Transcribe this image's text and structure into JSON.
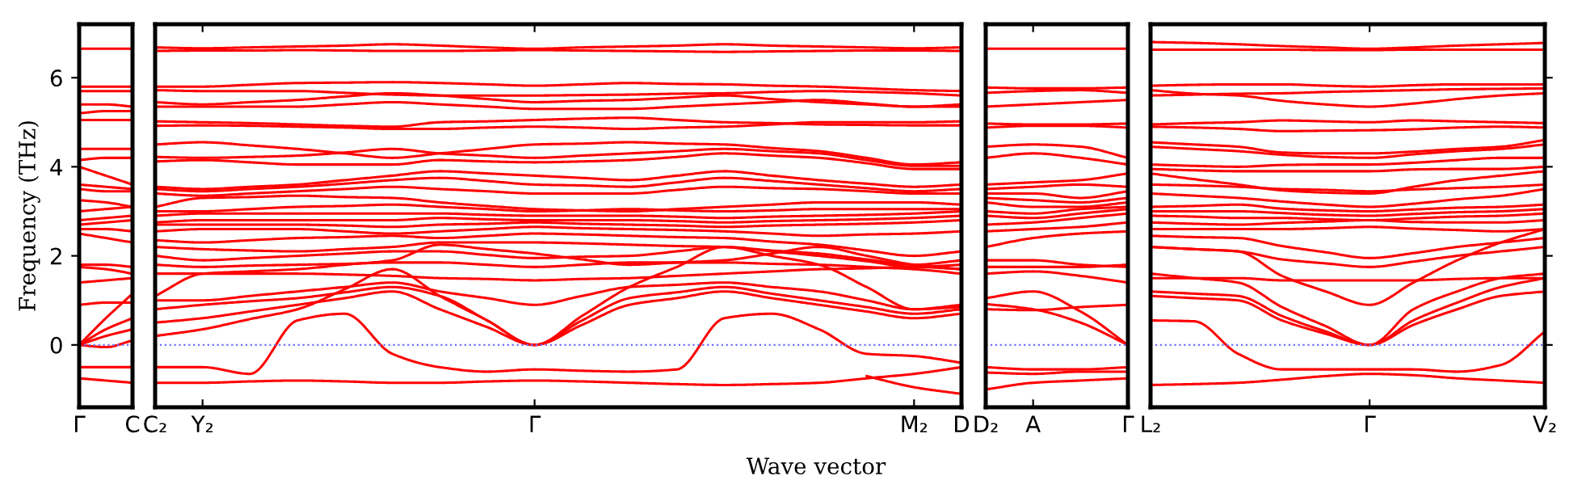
{
  "chart_data": [
    {
      "type": "line",
      "ylabel": "Frequency (THz)",
      "categories": [
        "Γ",
        null,
        "C"
      ],
      "ylim": [
        -1.4,
        7.2
      ],
      "yticks": [
        0,
        2,
        4,
        6
      ],
      "ref_lines": [
        {
          "axis": "y",
          "value": 0,
          "color": "#6f6fff",
          "line_style": "dotted"
        }
      ],
      "series": [
        {
          "color": "#ff0000",
          "values": [
            6.65,
            6.65,
            6.65
          ]
        },
        {
          "color": "#ff0000",
          "values": [
            5.8,
            5.8,
            5.8
          ]
        },
        {
          "color": "#ff0000",
          "values": [
            5.7,
            5.7,
            5.7
          ]
        },
        {
          "color": "#ff0000",
          "values": [
            5.4,
            5.4,
            5.35
          ]
        },
        {
          "color": "#ff0000",
          "values": [
            5.2,
            5.25,
            5.25
          ]
        },
        {
          "color": "#ff0000",
          "values": [
            5.05,
            5.05,
            5.05
          ]
        },
        {
          "color": "#ff0000",
          "values": [
            4.4,
            4.4,
            4.4
          ]
        },
        {
          "color": "#ff0000",
          "values": [
            4.15,
            4.2,
            4.2
          ]
        },
        {
          "color": "#ff0000",
          "values": [
            4.0,
            3.8,
            3.6
          ]
        },
        {
          "color": "#ff0000",
          "values": [
            3.6,
            3.55,
            3.5
          ]
        },
        {
          "color": "#ff0000",
          "values": [
            3.5,
            3.45,
            3.45
          ]
        },
        {
          "color": "#ff0000",
          "values": [
            3.25,
            3.2,
            3.1
          ]
        },
        {
          "color": "#ff0000",
          "values": [
            3.0,
            3.05,
            3.1
          ]
        },
        {
          "color": "#ff0000",
          "values": [
            2.8,
            2.85,
            2.9
          ]
        },
        {
          "color": "#ff0000",
          "values": [
            2.7,
            2.75,
            2.8
          ]
        },
        {
          "color": "#ff0000",
          "values": [
            2.6,
            2.6,
            2.55
          ]
        },
        {
          "color": "#ff0000",
          "values": [
            2.5,
            2.4,
            2.3
          ]
        },
        {
          "color": "#ff0000",
          "values": [
            1.8,
            1.8,
            1.75
          ]
        },
        {
          "color": "#ff0000",
          "values": [
            1.75,
            1.7,
            1.6
          ]
        },
        {
          "color": "#ff0000",
          "values": [
            1.4,
            1.45,
            1.5
          ]
        },
        {
          "color": "#ff0000",
          "values": [
            0.9,
            0.95,
            0.95
          ]
        },
        {
          "color": "#ff0000",
          "values": [
            0,
            0.6,
            1.15
          ]
        },
        {
          "color": "#ff0000",
          "values": [
            0,
            0.35,
            0.6
          ]
        },
        {
          "color": "#ff0000",
          "values": [
            0,
            0.2,
            0.35
          ]
        },
        {
          "color": "#ff0000",
          "values": [
            0,
            -0.05,
            0.1
          ]
        },
        {
          "color": "#ff0000",
          "values": [
            -0.5,
            -0.5,
            -0.5
          ]
        },
        {
          "color": "#ff0000",
          "values": [
            -0.75,
            -0.8,
            -0.85
          ]
        }
      ]
    },
    {
      "type": "line",
      "xlabel": "Wave vector",
      "tick_labels": "x",
      "categories": [
        "C₂",
        "Y₂",
        null,
        null,
        null,
        null,
        null,
        null,
        "Γ",
        null,
        null,
        null,
        null,
        null,
        null,
        null,
        "M₂",
        "D"
      ],
      "ylim": [
        -1.4,
        7.2
      ],
      "yticks": [
        0,
        2,
        4,
        6
      ],
      "ref_lines": [
        {
          "axis": "y",
          "value": 0,
          "color": "#6f6fff",
          "line_style": "dotted"
        }
      ],
      "series": [
        {
          "color": "#ff0000",
          "values": [
            6.68,
            6.66,
            6.68,
            6.7,
            6.72,
            6.75,
            6.72,
            6.68,
            6.65,
            6.68,
            6.7,
            6.72,
            6.75,
            6.72,
            6.7,
            6.68,
            6.66,
            6.68
          ]
        },
        {
          "color": "#ff0000",
          "values": [
            6.6,
            6.61,
            6.61,
            6.62,
            6.61,
            6.6,
            6.6,
            6.61,
            6.62,
            6.61,
            6.6,
            6.59,
            6.58,
            6.59,
            6.6,
            6.61,
            6.61,
            6.6
          ]
        },
        {
          "color": "#ff0000",
          "values": [
            5.8,
            5.8,
            5.84,
            5.88,
            5.89,
            5.9,
            5.88,
            5.85,
            5.82,
            5.85,
            5.88,
            5.86,
            5.85,
            5.82,
            5.8,
            5.76,
            5.72,
            5.7
          ]
        },
        {
          "color": "#ff0000",
          "values": [
            5.72,
            5.7,
            5.7,
            5.7,
            5.66,
            5.62,
            5.6,
            5.6,
            5.6,
            5.61,
            5.62,
            5.64,
            5.65,
            5.68,
            5.7,
            5.68,
            5.65,
            5.6
          ]
        },
        {
          "color": "#ff0000",
          "values": [
            5.45,
            5.4,
            5.45,
            5.5,
            5.58,
            5.65,
            5.6,
            5.52,
            5.45,
            5.48,
            5.5,
            5.55,
            5.6,
            5.52,
            5.45,
            5.4,
            5.35,
            5.35
          ]
        },
        {
          "color": "#ff0000",
          "values": [
            5.35,
            5.35,
            5.35,
            5.35,
            5.4,
            5.45,
            5.4,
            5.35,
            5.3,
            5.3,
            5.3,
            5.35,
            5.4,
            5.45,
            5.5,
            5.42,
            5.35,
            5.4
          ]
        },
        {
          "color": "#ff0000",
          "values": [
            5.02,
            5.0,
            4.98,
            4.95,
            4.92,
            4.9,
            5.0,
            5.02,
            5.05,
            5.08,
            5.1,
            5.05,
            5.0,
            4.98,
            4.95,
            4.94,
            4.93,
            4.93
          ]
        },
        {
          "color": "#ff0000",
          "values": [
            4.92,
            4.93,
            4.92,
            4.9,
            4.88,
            4.85,
            4.85,
            4.88,
            4.9,
            4.88,
            4.85,
            4.88,
            4.9,
            4.95,
            5.0,
            5.0,
            5.0,
            5.02
          ]
        },
        {
          "color": "#ff0000",
          "values": [
            4.5,
            4.55,
            4.48,
            4.4,
            4.3,
            4.2,
            4.3,
            4.4,
            4.5,
            4.52,
            4.55,
            4.52,
            4.5,
            4.42,
            4.35,
            4.2,
            4.05,
            4.1
          ]
        },
        {
          "color": "#ff0000",
          "values": [
            4.22,
            4.2,
            4.22,
            4.25,
            4.32,
            4.4,
            4.3,
            4.25,
            4.2,
            4.25,
            4.3,
            4.35,
            4.4,
            4.35,
            4.3,
            4.15,
            4.02,
            4.02
          ]
        },
        {
          "color": "#ff0000",
          "values": [
            4.12,
            4.15,
            4.1,
            4.05,
            4.05,
            4.05,
            4.15,
            4.12,
            4.1,
            4.12,
            4.15,
            4.22,
            4.3,
            4.25,
            4.2,
            4.08,
            3.95,
            3.95
          ]
        },
        {
          "color": "#ff0000",
          "values": [
            3.55,
            3.5,
            3.55,
            3.6,
            3.7,
            3.8,
            3.9,
            3.85,
            3.8,
            3.75,
            3.7,
            3.8,
            3.9,
            3.8,
            3.7,
            3.62,
            3.55,
            3.6
          ]
        },
        {
          "color": "#ff0000",
          "values": [
            3.5,
            3.45,
            3.5,
            3.55,
            3.62,
            3.7,
            3.75,
            3.68,
            3.6,
            3.58,
            3.55,
            3.65,
            3.75,
            3.68,
            3.6,
            3.52,
            3.45,
            3.5
          ]
        },
        {
          "color": "#ff0000",
          "values": [
            3.4,
            3.35,
            3.4,
            3.45,
            3.5,
            3.55,
            3.5,
            3.45,
            3.4,
            3.4,
            3.4,
            3.48,
            3.55,
            3.52,
            3.5,
            3.45,
            3.4,
            3.4
          ]
        },
        {
          "color": "#ff0000",
          "values": [
            3.1,
            3.3,
            3.32,
            3.35,
            3.32,
            3.3,
            3.2,
            3.12,
            3.05,
            3.02,
            3.0,
            3.05,
            3.1,
            3.15,
            3.2,
            3.2,
            3.2,
            3.15
          ]
        },
        {
          "color": "#ff0000",
          "values": [
            3.0,
            3.0,
            3.05,
            3.1,
            3.12,
            3.15,
            3.1,
            3.05,
            3.0,
            3.02,
            3.05,
            3.02,
            3.0,
            3.02,
            3.05,
            3.05,
            3.05,
            3.05
          ]
        },
        {
          "color": "#ff0000",
          "values": [
            2.9,
            2.95,
            2.95,
            2.95,
            2.95,
            2.95,
            2.95,
            2.92,
            2.9,
            2.9,
            2.9,
            2.88,
            2.85,
            2.88,
            2.9,
            2.92,
            2.95,
            3.0
          ]
        },
        {
          "color": "#ff0000",
          "values": [
            2.75,
            2.8,
            2.8,
            2.8,
            2.8,
            2.8,
            2.85,
            2.82,
            2.8,
            2.8,
            2.8,
            2.78,
            2.75,
            2.78,
            2.8,
            2.82,
            2.85,
            2.9
          ]
        },
        {
          "color": "#ff0000",
          "values": [
            2.7,
            2.7,
            2.7,
            2.7,
            2.68,
            2.65,
            2.7,
            2.72,
            2.75,
            2.72,
            2.7,
            2.68,
            2.65,
            2.68,
            2.7,
            2.72,
            2.75,
            2.8
          ]
        },
        {
          "color": "#ff0000",
          "values": [
            2.55,
            2.6,
            2.6,
            2.6,
            2.55,
            2.5,
            2.55,
            2.6,
            2.65,
            2.62,
            2.6,
            2.58,
            2.55,
            2.5,
            2.45,
            2.48,
            2.5,
            2.55
          ]
        },
        {
          "color": "#ff0000",
          "values": [
            2.35,
            2.3,
            2.35,
            2.4,
            2.42,
            2.45,
            2.4,
            2.45,
            2.5,
            2.48,
            2.45,
            2.42,
            2.4,
            2.32,
            2.25,
            2.12,
            2.0,
            2.1
          ]
        },
        {
          "color": "#ff0000",
          "values": [
            2.2,
            2.15,
            2.12,
            2.1,
            2.15,
            2.2,
            2.3,
            2.3,
            2.3,
            2.28,
            2.25,
            2.22,
            2.2,
            2.12,
            2.05,
            1.92,
            1.8,
            1.9
          ]
        },
        {
          "color": "#ff0000",
          "values": [
            2.0,
            1.9,
            1.95,
            2.0,
            2.05,
            2.1,
            2.1,
            2.02,
            1.95,
            1.98,
            2.0,
            2.1,
            2.2,
            2.1,
            2.0,
            1.88,
            1.75,
            1.8
          ]
        },
        {
          "color": "#ff0000",
          "values": [
            1.8,
            1.75,
            1.78,
            1.8,
            1.82,
            1.85,
            1.85,
            1.8,
            1.75,
            1.8,
            1.85,
            1.85,
            1.85,
            1.82,
            1.8,
            1.75,
            1.7,
            1.6
          ]
        },
        {
          "color": "#ff0000",
          "values": [
            1.1,
            1.6,
            1.65,
            1.7,
            1.8,
            1.9,
            2.25,
            2.15,
            2.05,
            1.92,
            1.8,
            1.85,
            1.9,
            2.05,
            2.2,
            2.0,
            1.8,
            1.7
          ]
        },
        {
          "color": "#ff0000",
          "values": [
            1.6,
            1.6,
            1.6,
            1.6,
            1.58,
            1.55,
            1.5,
            1.48,
            1.45,
            1.48,
            1.5,
            1.55,
            1.6,
            1.65,
            1.7,
            1.72,
            1.75,
            1.7
          ]
        },
        {
          "color": "#ff0000",
          "values": [
            1.0,
            1.0,
            1.1,
            1.2,
            1.3,
            1.4,
            1.2,
            1.05,
            0.9,
            1.1,
            1.3,
            1.35,
            1.4,
            1.3,
            1.2,
            1.0,
            0.8,
            0.85
          ]
        },
        {
          "color": "#ff0000",
          "values": [
            0.8,
            0.9,
            0.98,
            1.05,
            1.18,
            1.3,
            1.1,
            0.55,
            0,
            0.55,
            1.05,
            1.18,
            1.3,
            1.15,
            1.0,
            0.85,
            0.7,
            0.8
          ]
        },
        {
          "color": "#ff0000",
          "values": [
            0.5,
            0.6,
            0.75,
            0.9,
            1.05,
            1.2,
            0.8,
            0.4,
            0,
            0.45,
            0.9,
            1.05,
            1.2,
            1.05,
            0.9,
            0.75,
            0.6,
            0.7
          ]
        },
        {
          "color": "#ff0000",
          "values": [
            0.2,
            0.35,
            0.58,
            0.8,
            1.25,
            1.7,
            1.1,
            0.55,
            0,
            0.65,
            1.3,
            1.75,
            2.2,
            2.0,
            1.8,
            1.3,
            0.8,
            0.9
          ]
        },
        {
          "color": "#ff0000",
          "values": [
            -0.5,
            -0.5,
            -0.65,
            0.55,
            0.7,
            -0.2,
            -0.5,
            -0.6,
            -0.55,
            -0.58,
            -0.6,
            -0.55,
            0.6,
            0.7,
            0.35,
            -0.2,
            -0.25,
            -0.4
          ]
        },
        {
          "color": "#ff0000",
          "values": [
            -0.85,
            -0.85,
            -0.82,
            -0.8,
            -0.82,
            -0.85,
            -0.85,
            -0.82,
            -0.8,
            -0.82,
            -0.85,
            -0.88,
            -0.9,
            -0.88,
            -0.85,
            -0.75,
            -0.65,
            -0.5
          ]
        },
        {
          "color": "#ff0000",
          "values": [
            null,
            null,
            null,
            null,
            null,
            null,
            null,
            null,
            null,
            null,
            null,
            null,
            null,
            null,
            null,
            -0.7,
            -0.95,
            -1.1
          ]
        }
      ]
    },
    {
      "type": "line",
      "tick_labels": "x",
      "categories": [
        "D₂",
        "A",
        null,
        "Γ"
      ],
      "ylim": [
        -1.4,
        7.2
      ],
      "yticks": [
        0,
        2,
        4,
        6
      ],
      "ref_lines": [
        {
          "axis": "y",
          "value": 0,
          "color": "#6f6fff",
          "line_style": "dotted"
        }
      ],
      "series": [
        {
          "color": "#ff0000",
          "values": [
            6.65,
            6.65,
            6.65,
            6.65
          ]
        },
        {
          "color": "#ff0000",
          "values": [
            5.78,
            5.76,
            5.76,
            5.78
          ]
        },
        {
          "color": "#ff0000",
          "values": [
            5.66,
            5.7,
            5.72,
            5.66
          ]
        },
        {
          "color": "#ff0000",
          "values": [
            5.35,
            5.4,
            5.45,
            5.5
          ]
        },
        {
          "color": "#ff0000",
          "values": [
            4.97,
            4.95,
            4.95,
            4.97
          ]
        },
        {
          "color": "#ff0000",
          "values": [
            4.88,
            4.92,
            4.92,
            4.88
          ]
        },
        {
          "color": "#ff0000",
          "values": [
            4.45,
            4.5,
            4.45,
            4.2
          ]
        },
        {
          "color": "#ff0000",
          "values": [
            4.2,
            4.3,
            4.2,
            4.05
          ]
        },
        {
          "color": "#ff0000",
          "values": [
            3.6,
            3.65,
            3.7,
            3.85
          ]
        },
        {
          "color": "#ff0000",
          "values": [
            3.5,
            3.55,
            3.6,
            3.55
          ]
        },
        {
          "color": "#ff0000",
          "values": [
            3.4,
            3.4,
            3.3,
            3.45
          ]
        },
        {
          "color": "#ff0000",
          "values": [
            3.3,
            3.25,
            3.2,
            3.3
          ]
        },
        {
          "color": "#ff0000",
          "values": [
            3.2,
            3.1,
            3.1,
            3.2
          ]
        },
        {
          "color": "#ff0000",
          "values": [
            3.0,
            2.95,
            3.05,
            3.1
          ]
        },
        {
          "color": "#ff0000",
          "values": [
            2.9,
            2.85,
            2.95,
            3.05
          ]
        },
        {
          "color": "#ff0000",
          "values": [
            2.7,
            2.75,
            2.85,
            2.95
          ]
        },
        {
          "color": "#ff0000",
          "values": [
            2.55,
            2.6,
            2.65,
            2.75
          ]
        },
        {
          "color": "#ff0000",
          "values": [
            2.2,
            2.4,
            2.5,
            2.55
          ]
        },
        {
          "color": "#ff0000",
          "values": [
            1.9,
            1.9,
            1.8,
            1.75
          ]
        },
        {
          "color": "#ff0000",
          "values": [
            1.75,
            1.75,
            1.75,
            1.8
          ]
        },
        {
          "color": "#ff0000",
          "values": [
            1.6,
            1.65,
            1.55,
            1.4
          ]
        },
        {
          "color": "#ff0000",
          "values": [
            1.05,
            1.2,
            0.75,
            0
          ]
        },
        {
          "color": "#ff0000",
          "values": [
            0.92,
            0.8,
            0.5,
            0
          ]
        },
        {
          "color": "#ff0000",
          "values": [
            0.8,
            0.78,
            0.85,
            0.9
          ]
        },
        {
          "color": "#ff0000",
          "values": [
            -0.5,
            -0.55,
            -0.55,
            -0.5
          ]
        },
        {
          "color": "#ff0000",
          "values": [
            -0.62,
            -0.65,
            -0.6,
            -0.6
          ]
        },
        {
          "color": "#ff0000",
          "values": [
            -1.0,
            -0.85,
            -0.8,
            -0.75
          ]
        }
      ]
    },
    {
      "type": "line",
      "tick_labels": "x",
      "categories": [
        "L₂",
        null,
        null,
        null,
        null,
        "Γ",
        null,
        null,
        null,
        "V₂"
      ],
      "ylim": [
        -1.4,
        7.2
      ],
      "yticks": [
        0,
        2,
        4,
        6
      ],
      "ref_lines": [
        {
          "axis": "y",
          "value": 0,
          "color": "#6f6fff",
          "line_style": "dotted"
        }
      ],
      "series": [
        {
          "color": "#ff0000",
          "values": [
            6.8,
            6.78,
            6.75,
            6.71,
            6.68,
            6.65,
            6.68,
            6.72,
            6.75,
            6.78
          ]
        },
        {
          "color": "#ff0000",
          "values": [
            6.63,
            6.63,
            6.63,
            6.63,
            6.62,
            6.62,
            6.63,
            6.63,
            6.63,
            6.63
          ]
        },
        {
          "color": "#ff0000",
          "values": [
            5.82,
            5.84,
            5.85,
            5.85,
            5.82,
            5.8,
            5.83,
            5.85,
            5.85,
            5.85
          ]
        },
        {
          "color": "#ff0000",
          "values": [
            5.72,
            5.64,
            5.6,
            5.48,
            5.4,
            5.35,
            5.42,
            5.52,
            5.6,
            5.65
          ]
        },
        {
          "color": "#ff0000",
          "values": [
            5.6,
            5.62,
            5.64,
            5.65,
            5.68,
            5.7,
            5.72,
            5.74,
            5.75,
            5.76
          ]
        },
        {
          "color": "#ff0000",
          "values": [
            4.95,
            4.98,
            5.0,
            5.04,
            5.02,
            5.0,
            5.04,
            5.02,
            5.0,
            4.98
          ]
        },
        {
          "color": "#ff0000",
          "values": [
            4.9,
            4.88,
            4.85,
            4.8,
            4.81,
            4.82,
            4.84,
            4.88,
            4.9,
            4.88
          ]
        },
        {
          "color": "#ff0000",
          "values": [
            4.55,
            4.5,
            4.45,
            4.32,
            4.3,
            4.3,
            4.34,
            4.4,
            4.45,
            4.6
          ]
        },
        {
          "color": "#ff0000",
          "values": [
            4.45,
            4.4,
            4.35,
            4.27,
            4.22,
            4.2,
            4.28,
            4.35,
            4.4,
            4.5
          ]
        },
        {
          "color": "#ff0000",
          "values": [
            4.05,
            4.02,
            4.0,
            4.04,
            4.05,
            4.05,
            4.09,
            4.15,
            4.2,
            4.2
          ]
        },
        {
          "color": "#ff0000",
          "values": [
            3.95,
            3.92,
            3.9,
            3.9,
            3.9,
            3.9,
            3.94,
            3.95,
            3.95,
            4.0
          ]
        },
        {
          "color": "#ff0000",
          "values": [
            3.85,
            3.72,
            3.6,
            3.47,
            3.42,
            3.4,
            3.55,
            3.7,
            3.8,
            3.9
          ]
        },
        {
          "color": "#ff0000",
          "values": [
            3.6,
            3.58,
            3.55,
            3.5,
            3.48,
            3.45,
            3.49,
            3.52,
            3.55,
            3.6
          ]
        },
        {
          "color": "#ff0000",
          "values": [
            3.4,
            3.35,
            3.3,
            3.22,
            3.15,
            3.1,
            3.17,
            3.27,
            3.35,
            3.5
          ]
        },
        {
          "color": "#ff0000",
          "values": [
            3.1,
            3.12,
            3.15,
            3.06,
            3.02,
            3.0,
            3.04,
            3.08,
            3.1,
            3.15
          ]
        },
        {
          "color": "#ff0000",
          "values": [
            3.0,
            3.0,
            3.0,
            2.96,
            2.92,
            2.9,
            2.94,
            2.98,
            3.0,
            3.05
          ]
        },
        {
          "color": "#ff0000",
          "values": [
            2.9,
            2.88,
            2.85,
            2.85,
            2.82,
            2.8,
            2.84,
            2.88,
            2.9,
            2.95
          ]
        },
        {
          "color": "#ff0000",
          "values": [
            2.75,
            2.72,
            2.7,
            2.74,
            2.77,
            2.8,
            2.76,
            2.75,
            2.75,
            2.8
          ]
        },
        {
          "color": "#ff0000",
          "values": [
            2.6,
            2.6,
            2.6,
            2.6,
            2.62,
            2.65,
            2.61,
            2.58,
            2.55,
            2.6
          ]
        },
        {
          "color": "#ff0000",
          "values": [
            2.45,
            2.42,
            2.4,
            2.22,
            2.08,
            1.95,
            2.06,
            2.2,
            2.3,
            2.4
          ]
        },
        {
          "color": "#ff0000",
          "values": [
            2.2,
            2.15,
            2.1,
            1.92,
            1.83,
            1.75,
            1.87,
            2.0,
            2.1,
            2.2
          ]
        },
        {
          "color": "#ff0000",
          "values": [
            1.5,
            1.5,
            1.5,
            1.45,
            1.45,
            1.45,
            1.45,
            1.48,
            1.5,
            1.5
          ]
        },
        {
          "color": "#ff0000",
          "values": [
            2.2,
            2.15,
            2.1,
            1.55,
            1.2,
            0.9,
            1.4,
            1.9,
            2.3,
            2.6
          ]
        },
        {
          "color": "#ff0000",
          "values": [
            1.6,
            1.5,
            1.4,
            0.85,
            0.42,
            0,
            0.8,
            1.2,
            1.5,
            1.6
          ]
        },
        {
          "color": "#ff0000",
          "values": [
            1.2,
            1.15,
            1.1,
            0.65,
            0.3,
            0,
            0.55,
            0.95,
            1.3,
            1.5
          ]
        },
        {
          "color": "#ff0000",
          "values": [
            1.1,
            1.05,
            1.0,
            0.55,
            0.25,
            0,
            0.45,
            0.8,
            1.1,
            1.2
          ]
        },
        {
          "color": "#ff0000",
          "values": [
            0.55,
            0.53,
            -0.2,
            -0.55,
            -0.55,
            -0.55,
            -0.55,
            -0.6,
            -0.45,
            0.3
          ]
        },
        {
          "color": "#ff0000",
          "values": [
            -0.9,
            -0.88,
            -0.85,
            -0.78,
            -0.7,
            -0.65,
            -0.68,
            -0.75,
            -0.8,
            -0.85
          ]
        }
      ]
    }
  ]
}
